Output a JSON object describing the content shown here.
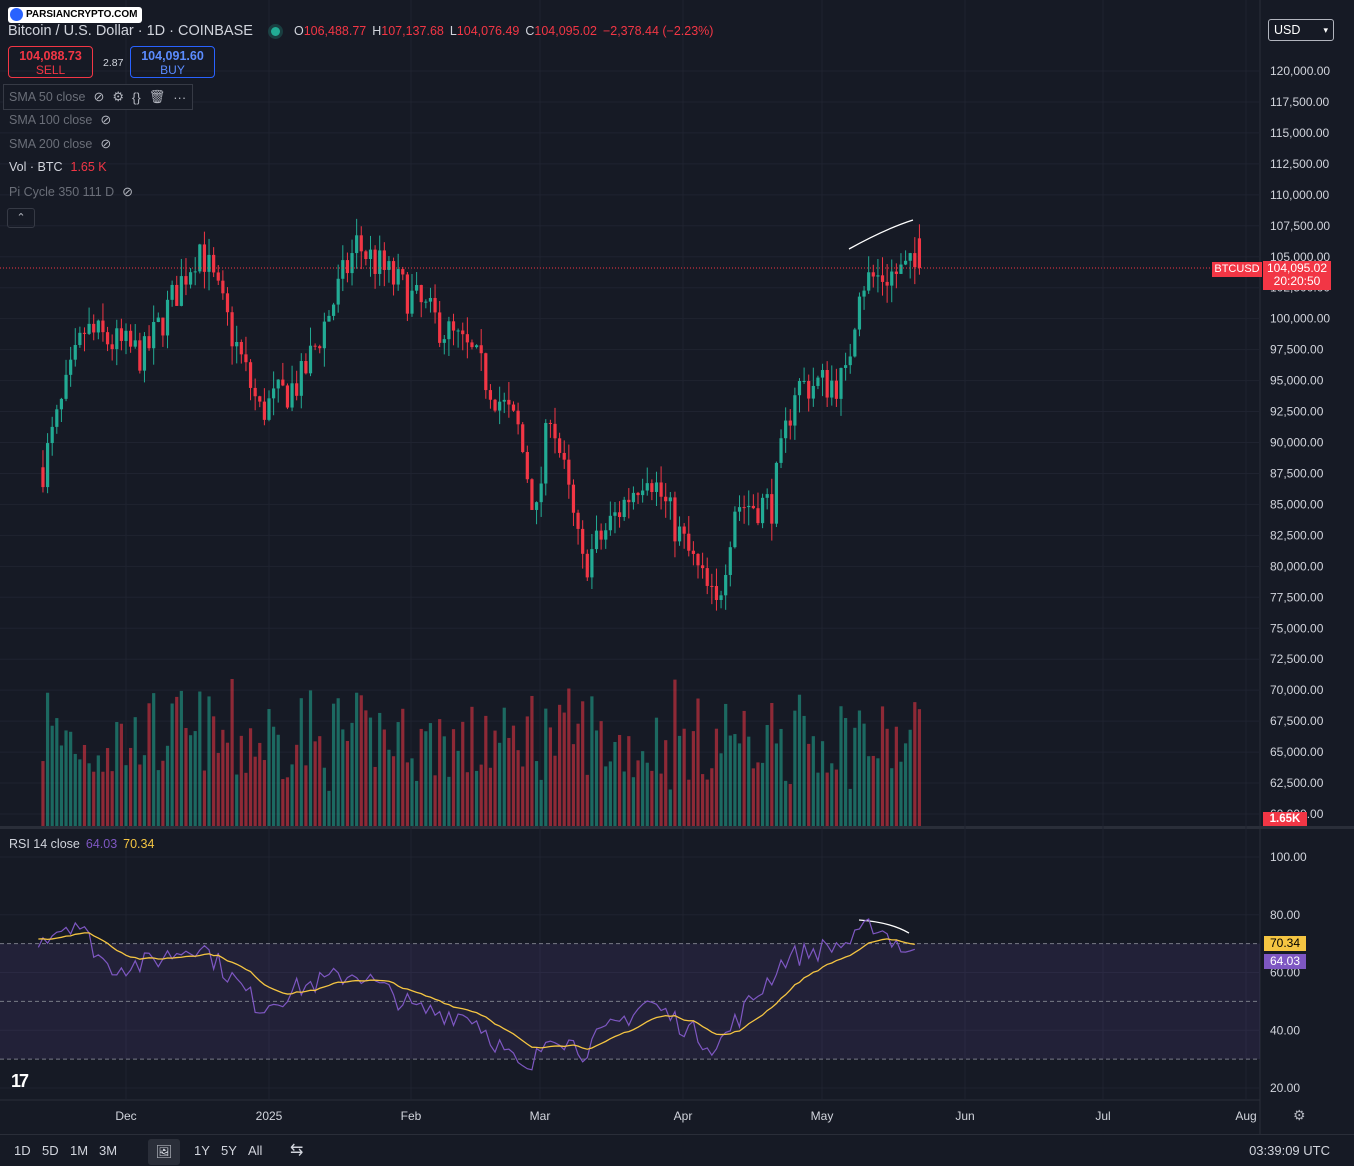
{
  "header": {
    "logo_text": "PARSIANCRYPTO.COM",
    "symbol_title": "Bitcoin / U.S. Dollar · 1D · COINBASE",
    "ohlc": [
      {
        "k": "O",
        "v": "106,488.77"
      },
      {
        "k": "H",
        "v": "107,137.68"
      },
      {
        "k": "L",
        "v": "104,076.49"
      },
      {
        "k": "C",
        "v": "104,095.02"
      },
      {
        "k": "",
        "v": "−2,378.44 (−2.23%)"
      }
    ],
    "currency": "USD"
  },
  "trade": {
    "sell_price": "104,088.73",
    "sell_label": "SELL",
    "buy_price": "104,091.60",
    "buy_label": "BUY",
    "spread": "2.87"
  },
  "indicators": [
    {
      "label": "SMA 50 close"
    },
    {
      "label": "SMA 100 close"
    },
    {
      "label": "SMA 200 close"
    },
    {
      "label": "Vol · BTC",
      "value": "1.65 K"
    },
    {
      "label": "Pi Cycle 350 111 D"
    }
  ],
  "price_tag": {
    "symbol": "BTCUSD",
    "price": "104,095.02",
    "countdown": "20:20:50"
  },
  "volume_tag": "1.65K",
  "rsi": {
    "label": "RSI 14 close",
    "value": "64.03",
    "ma": "70.34"
  },
  "timeframes": [
    "1D",
    "5D",
    "1M",
    "3M",
    "1Y",
    "5Y",
    "All"
  ],
  "clock": "03:39:09 UTC",
  "colors": {
    "up": "#22ab94",
    "down": "#f23645",
    "rsi": "#7e57c2",
    "rsi_ma": "#f5c542",
    "background": "#161a25"
  },
  "chart_data": {
    "type": "candlestick",
    "title": "Bitcoin / U.S. Dollar · 1D · COINBASE",
    "price_axis": {
      "ticks": [
        "120,000.00",
        "117,500.00",
        "115,000.00",
        "112,500.00",
        "110,000.00",
        "107,500.00",
        "105,000.00",
        "102,500.00",
        "100,000.00",
        "97,500.00",
        "95,000.00",
        "92,500.00",
        "90,000.00",
        "87,500.00",
        "85,000.00",
        "82,500.00",
        "80,000.00",
        "77,500.00",
        "75,000.00",
        "72,500.00",
        "70,000.00",
        "67,500.00",
        "65,000.00",
        "62,500.00",
        "60,000.00"
      ],
      "ylim": [
        60000,
        120000
      ]
    },
    "time_axis": [
      "Dec",
      "2025",
      "Feb",
      "Mar",
      "Apr",
      "May",
      "Jun",
      "Jul",
      "Aug"
    ],
    "rsi_axis": {
      "ticks": [
        "100.00",
        "80.00",
        "60.00",
        "40.00",
        "20.00"
      ],
      "ylim": [
        20,
        100
      ],
      "bands": [
        70,
        50,
        30
      ]
    },
    "price_anchors": [
      [
        "2024-11-13",
        88000
      ],
      [
        "2024-11-22",
        99000
      ],
      [
        "2024-12-05",
        97000
      ],
      [
        "2024-12-17",
        106000
      ],
      [
        "2024-12-30",
        92500
      ],
      [
        "2025-01-08",
        95000
      ],
      [
        "2025-01-20",
        106000
      ],
      [
        "2025-01-31",
        102000
      ],
      [
        "2025-02-14",
        97000
      ],
      [
        "2025-02-24",
        91000
      ],
      [
        "2025-02-28",
        84000
      ],
      [
        "2025-03-03",
        93000
      ],
      [
        "2025-03-10",
        80000
      ],
      [
        "2025-03-24",
        88000
      ],
      [
        "2025-03-31",
        82500
      ],
      [
        "2025-04-08",
        76500
      ],
      [
        "2025-04-12",
        85000
      ],
      [
        "2025-04-20",
        85000
      ],
      [
        "2025-04-25",
        94500
      ],
      [
        "2025-05-06",
        95000
      ],
      [
        "2025-05-09",
        103000
      ],
      [
        "2025-05-22",
        104095
      ]
    ],
    "rsi_anchors": [
      [
        "2024-11-12",
        72
      ],
      [
        "2024-11-20",
        78
      ],
      [
        "2024-11-27",
        62
      ],
      [
        "2024-12-05",
        63
      ],
      [
        "2024-12-17",
        70
      ],
      [
        "2024-12-30",
        48
      ],
      [
        "2025-01-08",
        55
      ],
      [
        "2025-01-20",
        60
      ],
      [
        "2025-02-02",
        47
      ],
      [
        "2025-02-14",
        45
      ],
      [
        "2025-02-26",
        24
      ],
      [
        "2025-03-03",
        40
      ],
      [
        "2025-03-10",
        33
      ],
      [
        "2025-03-24",
        50
      ],
      [
        "2025-04-08",
        34
      ],
      [
        "2025-04-14",
        47
      ],
      [
        "2025-04-23",
        65
      ],
      [
        "2025-05-08",
        71
      ],
      [
        "2025-05-12",
        77
      ],
      [
        "2025-05-22",
        64
      ]
    ]
  }
}
